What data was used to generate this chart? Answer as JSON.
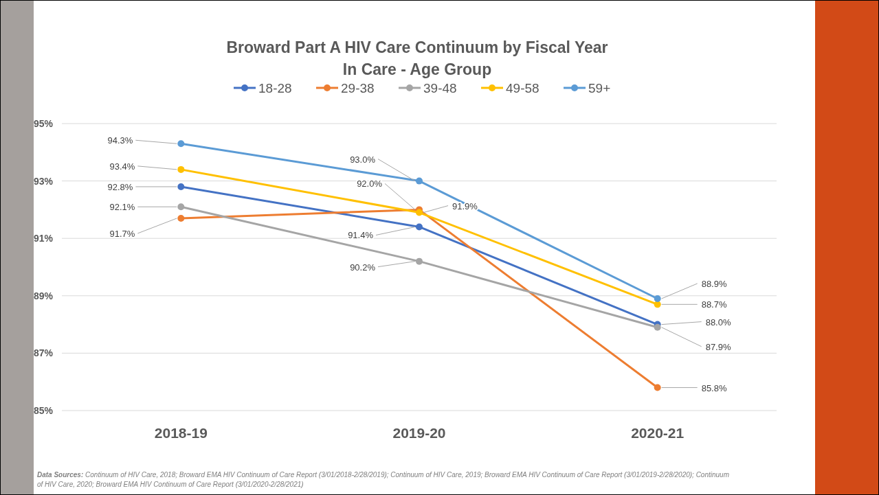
{
  "chart_data": {
    "type": "line",
    "title": "Broward Part A HIV Care Continuum by Fiscal Year",
    "subtitle": "In Care - Age Group",
    "categories": [
      "2018-19",
      "2019-20",
      "2020-21"
    ],
    "series": [
      {
        "name": "18-28",
        "color": "#4472c4",
        "values": [
          92.8,
          91.4,
          88.0
        ],
        "value_labels": [
          "92.8%",
          "91.4%",
          "88.0%"
        ]
      },
      {
        "name": "29-38",
        "color": "#ed7d31",
        "values": [
          91.7,
          92.0,
          85.8
        ],
        "value_labels": [
          "91.7%",
          "92.0%",
          "85.8%"
        ]
      },
      {
        "name": "39-48",
        "color": "#a5a5a5",
        "values": [
          92.1,
          90.2,
          87.9
        ],
        "value_labels": [
          "92.1%",
          "90.2%",
          "87.9%"
        ]
      },
      {
        "name": "49-58",
        "color": "#ffc000",
        "values": [
          93.4,
          91.9,
          88.7
        ],
        "value_labels": [
          "93.4%",
          "91.9%",
          "88.7%"
        ]
      },
      {
        "name": "59+",
        "color": "#5b9bd5",
        "values": [
          94.3,
          93.0,
          88.9
        ],
        "value_labels": [
          "94.3%",
          "93.0%",
          "88.9%"
        ]
      }
    ],
    "ylim": [
      85,
      95
    ],
    "yticks": [
      {
        "value": 85,
        "label": "85%"
      },
      {
        "value": 87,
        "label": "87%"
      },
      {
        "value": 89,
        "label": "89%"
      },
      {
        "value": 91,
        "label": "91%"
      },
      {
        "value": 93,
        "label": "93%"
      },
      {
        "value": 95,
        "label": "95%"
      }
    ],
    "grid": "y",
    "legend": "top",
    "marker": "circle",
    "line_style": "solid",
    "annotations": [
      "Data Sources:",
      "Continuum of HIV Care, 2018; Broward EMA HIV Continuum of Care Report (3/01/2018-2/28/2019); Continuum of HIV Care, 2019; Broward EMA HIV Continuum of Care Report (3/01/2019-2/28/2020);  Continuum of HIV Care, 2020; Broward EMA HIV Continuum of Care Report (3/01/2020-2/28/2021)"
    ]
  }
}
